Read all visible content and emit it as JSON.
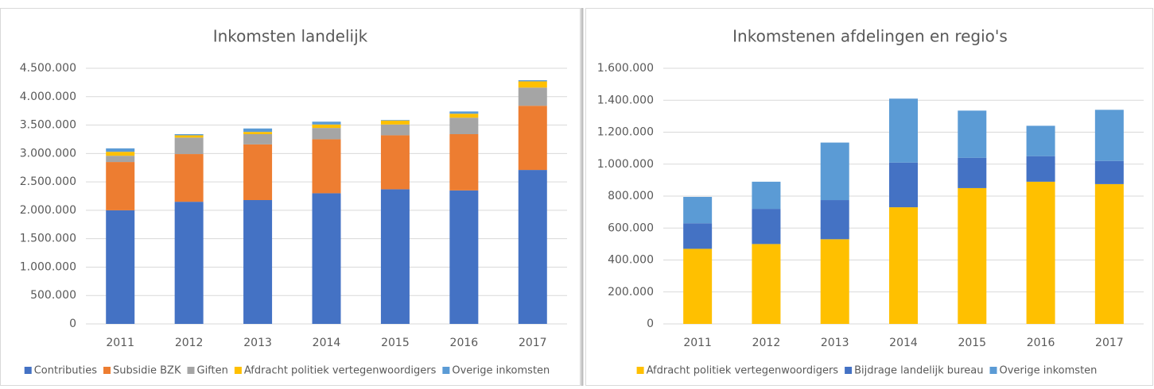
{
  "chart_data": [
    {
      "type": "stacked-bar",
      "title": "Inkomsten landelijk",
      "categories": [
        "2011",
        "2012",
        "2013",
        "2014",
        "2015",
        "2016",
        "2017"
      ],
      "series": [
        {
          "name": "Contributies",
          "color": "#4472c4",
          "values": [
            2000000,
            2150000,
            2180000,
            2300000,
            2370000,
            2350000,
            2710000
          ]
        },
        {
          "name": "Subsidie BZK",
          "color": "#ed7d31",
          "values": [
            850000,
            840000,
            980000,
            950000,
            950000,
            990000,
            1130000
          ]
        },
        {
          "name": "Giften",
          "color": "#a5a5a5",
          "values": [
            110000,
            290000,
            180000,
            200000,
            190000,
            290000,
            320000
          ]
        },
        {
          "name": "Afdracht politiek vertegenwoordigers",
          "color": "#ffc000",
          "values": [
            70000,
            40000,
            40000,
            60000,
            70000,
            70000,
            110000
          ]
        },
        {
          "name": "Overige inkomsten",
          "color": "#5b9bd5",
          "values": [
            60000,
            20000,
            60000,
            50000,
            10000,
            40000,
            20000
          ]
        }
      ],
      "ylim": [
        0,
        4500000
      ],
      "yticks": [
        0,
        {
          "value": 500000,
          "label": "500.000"
        },
        {
          "value": 1000000,
          "label": "1.000.000"
        },
        {
          "value": 1500000,
          "label": "1.500.000"
        },
        {
          "value": 2000000,
          "label": "2.000.000"
        },
        {
          "value": 2500000,
          "label": "2.500.000"
        },
        {
          "value": 3000000,
          "label": "3.000.000"
        },
        {
          "value": 3500000,
          "label": "3.500.000"
        },
        {
          "value": 4000000,
          "label": "4.000.000"
        },
        {
          "value": 4500000,
          "label": "4.500.000"
        }
      ],
      "grid": true,
      "legend": "bottom"
    },
    {
      "type": "stacked-bar",
      "title": "Inkomstenen afdelingen en regio's",
      "categories": [
        "2011",
        "2012",
        "2013",
        "2014",
        "2015",
        "2016",
        "2017"
      ],
      "series": [
        {
          "name": "Afdracht politiek vertegenwoordigers",
          "color": "#ffc000",
          "values": [
            470000,
            500000,
            530000,
            730000,
            850000,
            890000,
            875000
          ]
        },
        {
          "name": "Bijdrage landelijk bureau",
          "color": "#4472c4",
          "values": [
            160000,
            220000,
            245000,
            280000,
            190000,
            160000,
            145000
          ]
        },
        {
          "name": "Overige inkomsten",
          "color": "#5b9bd5",
          "values": [
            165000,
            170000,
            360000,
            400000,
            295000,
            190000,
            320000
          ]
        }
      ],
      "ylim": [
        0,
        1600000
      ],
      "yticks": [
        0,
        {
          "value": 200000,
          "label": "200.000"
        },
        {
          "value": 400000,
          "label": "400.000"
        },
        {
          "value": 600000,
          "label": "600.000"
        },
        {
          "value": 800000,
          "label": "800.000"
        },
        {
          "value": 1000000,
          "label": "1.000.000"
        },
        {
          "value": 1200000,
          "label": "1.200.000"
        },
        {
          "value": 1400000,
          "label": "1.400.000"
        },
        {
          "value": 1600000,
          "label": "1.600.000"
        }
      ],
      "grid": true,
      "legend": "bottom"
    }
  ]
}
